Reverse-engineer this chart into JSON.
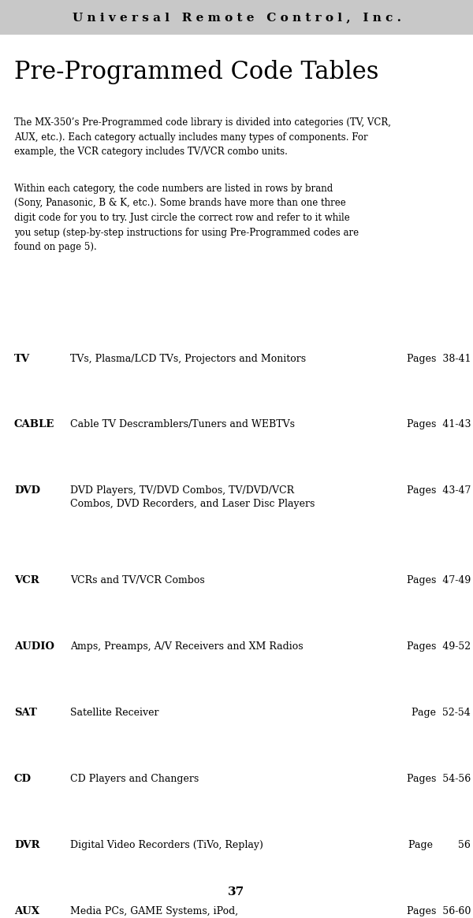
{
  "header_text": "Universal Remote Control, Inc.",
  "header_bg": "#c8c8c8",
  "title": "Pre-Programmed Code Tables",
  "paragraph1": "The MX-350’s Pre-Programmed code library is divided into categories (TV, VCR,\nAUX, etc.). Each category actually includes many types of components. For\nexample, the VCR category includes TV/VCR combo units.",
  "paragraph2": "Within each category, the code numbers are listed in rows by brand\n(Sony, Panasonic, B & K, etc.). Some brands have more than one three\ndigit code for you to try. Just circle the correct row and refer to it while\nyou setup (step-by-step instructions for using Pre-Programmed codes are\nfound on page 5).",
  "page_number": "37",
  "entries": [
    {
      "code": "TV",
      "description": "TVs, Plasma/LCD TVs, Projectors and Monitors",
      "pages": "Pages  38-41"
    },
    {
      "code": "CABLE",
      "description": "Cable TV Descramblers/Tuners and WEBTVs",
      "pages": "Pages  41-43"
    },
    {
      "code": "DVD",
      "description": "DVD Players, TV/DVD Combos, TV/DVD/VCR\nCombos, DVD Recorders, and Laser Disc Players",
      "pages": "Pages  43-47"
    },
    {
      "code": "VCR",
      "description": "VCRs and TV/VCR Combos",
      "pages": "Pages  47-49"
    },
    {
      "code": "AUDIO",
      "description": "Amps, Preamps, A/V Receivers and XM Radios",
      "pages": "Pages  49-52"
    },
    {
      "code": "SAT",
      "description": "Satellite Receiver",
      "pages": "Page  52-54"
    },
    {
      "code": "CD",
      "description": "CD Players and Changers",
      "pages": "Pages  54-56"
    },
    {
      "code": "DVR",
      "description": "Digital Video Recorders (TiVo, Replay)",
      "pages": "Page        56"
    },
    {
      "code": "AUX",
      "description": "Media PCs, GAME Systems, iPod,\nTAPE Decks, Lighting Systems and Custom\nInstallation Products",
      "pages": "Pages  56-60"
    }
  ],
  "header_fontsize": 11,
  "title_fontsize": 22,
  "para_fontsize": 8.5,
  "code_fontsize": 9.5,
  "desc_fontsize": 9,
  "page_fontsize": 11
}
